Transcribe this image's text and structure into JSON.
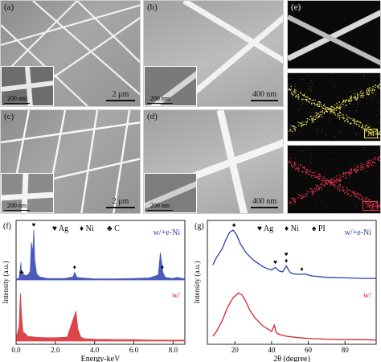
{
  "panels": {
    "a": {
      "label": "(a)",
      "scale": "2 μm",
      "inset_scale": "200 nm"
    },
    "b": {
      "label": "(b)",
      "scale": "400 nm",
      "inset_scale": "200 nm"
    },
    "c": {
      "label": "(c)",
      "scale": "2 μm",
      "inset_scale": "200 nm"
    },
    "d": {
      "label": "(d)",
      "scale": "400 nm",
      "inset_scale": "200 nm"
    },
    "e": {
      "label": "(e)",
      "map_ni": "Ni",
      "map_ag": "Ag",
      "ni_color": "#e8e066",
      "ag_color": "#e8334a"
    }
  },
  "chart_data": [
    {
      "type": "line",
      "panel_label": "(f)",
      "xlabel": "Energy-keV",
      "ylabel": "Intensity (a.u.)",
      "xlim": [
        0,
        8.6
      ],
      "xticks": [
        0.0,
        2.0,
        4.0,
        6.0,
        8.0
      ],
      "xtick_labels": [
        "0.0",
        "2.0",
        "4.0",
        "6.0",
        "8.0"
      ],
      "legend": [
        {
          "symbol": "♥",
          "text": "Ag"
        },
        {
          "symbol": "♦",
          "text": "Ni"
        },
        {
          "symbol": "♣",
          "text": "C"
        }
      ],
      "series": [
        {
          "name": "w/+e-Ni",
          "color": "#2b3fb0",
          "x": [
            0.0,
            0.15,
            0.25,
            0.28,
            0.35,
            0.5,
            0.65,
            0.72,
            0.78,
            0.85,
            0.9,
            0.95,
            1.05,
            1.2,
            1.6,
            2.0,
            2.5,
            2.9,
            2.98,
            3.1,
            3.3,
            4.0,
            5.0,
            6.0,
            6.8,
            7.25,
            7.35,
            7.48,
            7.6,
            8.0,
            8.2,
            8.6
          ],
          "y": [
            0.02,
            0.03,
            0.35,
            0.05,
            0.12,
            0.08,
            0.12,
            0.18,
            0.75,
            0.55,
            1.0,
            0.4,
            0.12,
            0.06,
            0.03,
            0.03,
            0.03,
            0.06,
            0.15,
            0.05,
            0.04,
            0.02,
            0.02,
            0.03,
            0.04,
            0.1,
            0.55,
            0.15,
            0.05,
            0.03,
            0.05,
            0.02
          ]
        },
        {
          "name": "w/",
          "color": "#d7262b",
          "x": [
            0.0,
            0.15,
            0.22,
            0.28,
            0.35,
            0.6,
            1.0,
            1.5,
            2.0,
            2.6,
            2.95,
            3.05,
            3.15,
            3.3,
            3.5,
            4.0,
            5.0,
            6.0,
            7.0,
            8.0,
            8.6
          ],
          "y": [
            0.05,
            0.3,
            1.0,
            0.55,
            0.2,
            0.1,
            0.08,
            0.07,
            0.07,
            0.08,
            0.5,
            0.62,
            0.25,
            0.08,
            0.05,
            0.04,
            0.03,
            0.03,
            0.02,
            0.02,
            0.02
          ]
        }
      ],
      "peak_markers": [
        {
          "series": "w/+e-Ni",
          "x": 0.28,
          "symbol": "♣"
        },
        {
          "series": "w/+e-Ni",
          "x": 0.9,
          "symbol": "♥"
        },
        {
          "series": "w/+e-Ni",
          "x": 2.98,
          "symbol": "♦"
        },
        {
          "series": "w/+e-Ni",
          "x": 7.45,
          "symbol": "♦"
        }
      ]
    },
    {
      "type": "line",
      "panel_label": "(g)",
      "xlabel": "2θ (degree)",
      "ylabel": "Intensity (a.u.)",
      "xlim": [
        5,
        97
      ],
      "xticks": [
        20,
        40,
        60,
        80
      ],
      "xtick_labels": [
        "20",
        "40",
        "60",
        "80"
      ],
      "legend": [
        {
          "symbol": "♥",
          "text": "Ag"
        },
        {
          "symbol": "♦",
          "text": "Ni"
        },
        {
          "symbol": "♠",
          "text": "PI"
        }
      ],
      "series": [
        {
          "name": "w/+e-Ni",
          "color": "#2b3fb0",
          "x": [
            8,
            10,
            13,
            15,
            17,
            19,
            21,
            23,
            26,
            30,
            35,
            38,
            40,
            42,
            44,
            46,
            48,
            50,
            52,
            55,
            58,
            62,
            70,
            80,
            90,
            97
          ],
          "y": [
            0.3,
            0.45,
            0.62,
            0.8,
            0.95,
            1.0,
            0.9,
            0.72,
            0.55,
            0.4,
            0.27,
            0.22,
            0.2,
            0.25,
            0.18,
            0.16,
            0.28,
            0.15,
            0.12,
            0.11,
            0.12,
            0.08,
            0.05,
            0.04,
            0.03,
            0.03
          ]
        },
        {
          "name": "w/",
          "color": "#d7262b",
          "x": [
            8,
            10,
            13,
            16,
            19,
            22,
            24,
            26,
            28,
            31,
            35,
            38,
            40,
            41.5,
            42.5,
            44,
            48,
            55,
            62,
            70,
            80,
            90,
            97
          ],
          "y": [
            0.1,
            0.2,
            0.42,
            0.7,
            0.9,
            1.0,
            0.95,
            0.82,
            0.65,
            0.48,
            0.32,
            0.25,
            0.2,
            0.33,
            0.18,
            0.14,
            0.1,
            0.07,
            0.05,
            0.04,
            0.03,
            0.03,
            0.02
          ]
        }
      ],
      "peak_markers": [
        {
          "series": "w/+e-Ni",
          "x": 19.5,
          "symbol": "♠"
        },
        {
          "series": "w/+e-Ni",
          "x": 42,
          "symbol": "♥"
        },
        {
          "series": "w/+e-Ni",
          "x": 48,
          "symbol": "♦"
        },
        {
          "series": "w/+e-Ni",
          "x": 48,
          "symbol": "♥"
        },
        {
          "series": "w/+e-Ni",
          "x": 56.5,
          "symbol": "♦"
        }
      ]
    }
  ]
}
